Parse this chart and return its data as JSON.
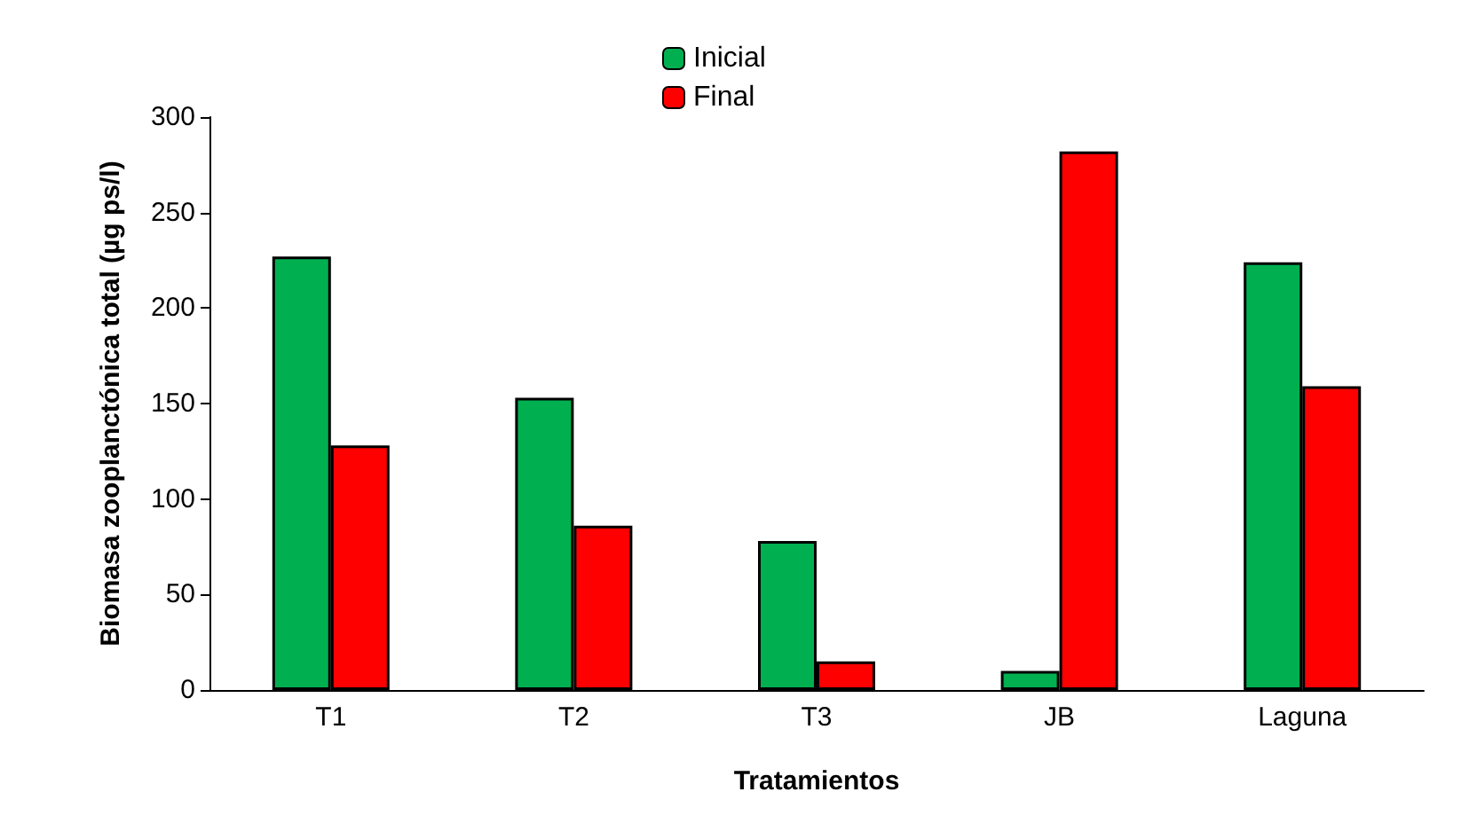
{
  "chart_data": {
    "type": "bar",
    "xlabel": "Tratamientos",
    "ylabel": "Biomasa zooplanctónica total (µg ps/l)",
    "categories": [
      "T1",
      "T2",
      "T3",
      "JB",
      "Laguna"
    ],
    "series": [
      {
        "name": "Inicial",
        "color": "#00b050",
        "values": [
          227,
          153,
          78,
          10,
          224
        ]
      },
      {
        "name": "Final",
        "color": "#ff0000",
        "values": [
          128,
          86,
          15,
          282,
          159
        ]
      }
    ],
    "ylim": [
      0,
      300
    ],
    "yticks": [
      0,
      50,
      100,
      150,
      200,
      250,
      300
    ],
    "grid": false,
    "legend": "top"
  }
}
